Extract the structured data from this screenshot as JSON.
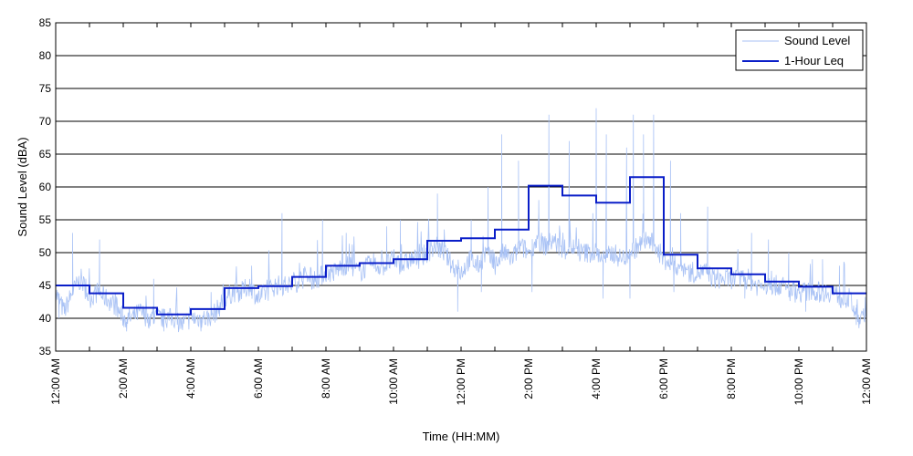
{
  "chart_data": {
    "type": "line",
    "title": "",
    "xlabel": "Time (HH:MM)",
    "ylabel": "Sound Level (dBA)",
    "ylim": [
      35,
      85
    ],
    "yticks": [
      35,
      40,
      45,
      50,
      55,
      60,
      65,
      70,
      75,
      80,
      85
    ],
    "xlim": [
      0,
      24
    ],
    "x_unit": "hours since 12:00 AM",
    "xticks": [
      {
        "x": 0,
        "label": "12:00 AM"
      },
      {
        "x": 2,
        "label": "2:00 AM"
      },
      {
        "x": 4,
        "label": "4:00 AM"
      },
      {
        "x": 6,
        "label": "6:00 AM"
      },
      {
        "x": 8,
        "label": "8:00 AM"
      },
      {
        "x": 10,
        "label": "10:00 AM"
      },
      {
        "x": 12,
        "label": "12:00 PM"
      },
      {
        "x": 14,
        "label": "2:00 PM"
      },
      {
        "x": 16,
        "label": "4:00 PM"
      },
      {
        "x": 18,
        "label": "6:00 PM"
      },
      {
        "x": 20,
        "label": "8:00 PM"
      },
      {
        "x": 22,
        "label": "10:00 PM"
      },
      {
        "x": 24,
        "label": "12:00 AM"
      }
    ],
    "grid": "horizontal",
    "legend_position": "top-right",
    "series": [
      {
        "name": "Sound Level",
        "style": "thin-line",
        "color": "#a9c2f5",
        "points": [
          [
            0.0,
            44
          ],
          [
            0.25,
            41
          ],
          [
            0.5,
            44
          ],
          [
            0.75,
            46
          ],
          [
            1.0,
            43
          ],
          [
            1.25,
            44
          ],
          [
            1.5,
            43
          ],
          [
            1.75,
            42
          ],
          [
            2.0,
            40
          ],
          [
            2.25,
            40
          ],
          [
            2.5,
            41
          ],
          [
            2.75,
            40
          ],
          [
            3.0,
            40
          ],
          [
            3.25,
            40
          ],
          [
            3.5,
            40
          ],
          [
            3.75,
            39
          ],
          [
            4.0,
            40
          ],
          [
            4.25,
            40
          ],
          [
            4.5,
            40
          ],
          [
            4.75,
            41
          ],
          [
            5.0,
            43
          ],
          [
            5.25,
            44
          ],
          [
            5.5,
            44
          ],
          [
            5.75,
            45
          ],
          [
            6.0,
            43
          ],
          [
            6.25,
            44
          ],
          [
            6.5,
            45
          ],
          [
            6.75,
            45
          ],
          [
            7.0,
            45
          ],
          [
            7.25,
            46
          ],
          [
            7.5,
            46
          ],
          [
            7.75,
            46
          ],
          [
            8.0,
            47
          ],
          [
            8.25,
            47
          ],
          [
            8.5,
            48
          ],
          [
            8.75,
            48
          ],
          [
            9.0,
            47
          ],
          [
            9.25,
            48
          ],
          [
            9.5,
            48
          ],
          [
            9.75,
            48
          ],
          [
            10.0,
            49
          ],
          [
            10.25,
            48
          ],
          [
            10.5,
            49
          ],
          [
            10.75,
            49
          ],
          [
            11.0,
            50
          ],
          [
            11.25,
            51
          ],
          [
            11.5,
            50
          ],
          [
            11.75,
            48
          ],
          [
            12.0,
            47
          ],
          [
            12.25,
            49
          ],
          [
            12.5,
            48
          ],
          [
            12.75,
            50
          ],
          [
            13.0,
            48
          ],
          [
            13.25,
            50
          ],
          [
            13.5,
            49
          ],
          [
            13.75,
            51
          ],
          [
            14.0,
            50
          ],
          [
            14.25,
            52
          ],
          [
            14.5,
            51
          ],
          [
            14.75,
            52
          ],
          [
            15.0,
            50
          ],
          [
            15.25,
            51
          ],
          [
            15.5,
            50
          ],
          [
            15.75,
            50
          ],
          [
            16.0,
            50
          ],
          [
            16.25,
            49
          ],
          [
            16.5,
            50
          ],
          [
            16.75,
            49
          ],
          [
            17.0,
            50
          ],
          [
            17.25,
            51
          ],
          [
            17.5,
            52
          ],
          [
            17.75,
            51
          ],
          [
            18.0,
            49
          ],
          [
            18.25,
            48
          ],
          [
            18.5,
            48
          ],
          [
            18.75,
            47
          ],
          [
            19.0,
            47
          ],
          [
            19.25,
            47
          ],
          [
            19.5,
            46
          ],
          [
            19.75,
            46
          ],
          [
            20.0,
            46
          ],
          [
            20.25,
            46
          ],
          [
            20.5,
            46
          ],
          [
            20.75,
            45
          ],
          [
            21.0,
            45
          ],
          [
            21.25,
            45
          ],
          [
            21.5,
            45
          ],
          [
            21.75,
            44
          ],
          [
            22.0,
            44
          ],
          [
            22.25,
            44
          ],
          [
            22.5,
            44
          ],
          [
            22.75,
            44
          ],
          [
            23.0,
            44
          ],
          [
            23.25,
            43
          ],
          [
            23.5,
            43
          ],
          [
            23.75,
            40
          ]
        ],
        "peaks": [
          [
            0.5,
            53
          ],
          [
            1.3,
            52
          ],
          [
            2.9,
            46
          ],
          [
            4.6,
            44
          ],
          [
            5.8,
            48
          ],
          [
            6.7,
            56
          ],
          [
            7.9,
            55
          ],
          [
            8.6,
            53
          ],
          [
            9.8,
            54
          ],
          [
            10.2,
            55
          ],
          [
            11.3,
            59
          ],
          [
            12.3,
            55
          ],
          [
            12.8,
            60
          ],
          [
            13.2,
            68
          ],
          [
            13.7,
            64
          ],
          [
            14.3,
            58
          ],
          [
            14.6,
            71
          ],
          [
            15.2,
            67
          ],
          [
            15.9,
            56
          ],
          [
            16.0,
            72
          ],
          [
            16.3,
            68
          ],
          [
            16.9,
            66
          ],
          [
            17.1,
            71
          ],
          [
            17.4,
            68
          ],
          [
            17.7,
            71
          ],
          [
            18.2,
            64
          ],
          [
            18.5,
            56
          ],
          [
            19.3,
            57
          ],
          [
            20.6,
            53
          ],
          [
            21.1,
            52
          ],
          [
            21.7,
            50
          ],
          [
            22.4,
            49
          ],
          [
            22.7,
            49
          ],
          [
            23.2,
            48
          ]
        ],
        "dips": [
          [
            0.1,
            40
          ],
          [
            2.1,
            38
          ],
          [
            3.2,
            38
          ],
          [
            4.3,
            38
          ],
          [
            11.9,
            41
          ],
          [
            12.6,
            44
          ],
          [
            14.1,
            44
          ],
          [
            16.2,
            43
          ],
          [
            17.0,
            43
          ],
          [
            18.3,
            44
          ],
          [
            20.4,
            43
          ],
          [
            22.2,
            41
          ],
          [
            23.7,
            39
          ]
        ]
      },
      {
        "name": "1-Hour Leq",
        "style": "step",
        "color": "#0a1ec8",
        "hours": [
          0,
          1,
          2,
          3,
          4,
          5,
          6,
          7,
          8,
          9,
          10,
          11,
          12,
          13,
          14,
          15,
          16,
          17,
          18,
          19,
          20,
          21,
          22,
          23
        ],
        "values": [
          45.0,
          43.8,
          41.6,
          40.6,
          41.4,
          44.6,
          44.9,
          46.3,
          48.0,
          48.4,
          49.0,
          51.8,
          52.2,
          53.5,
          60.2,
          58.7,
          57.6,
          61.5,
          49.7,
          47.6,
          46.7,
          45.6,
          44.8,
          43.8
        ]
      }
    ]
  }
}
